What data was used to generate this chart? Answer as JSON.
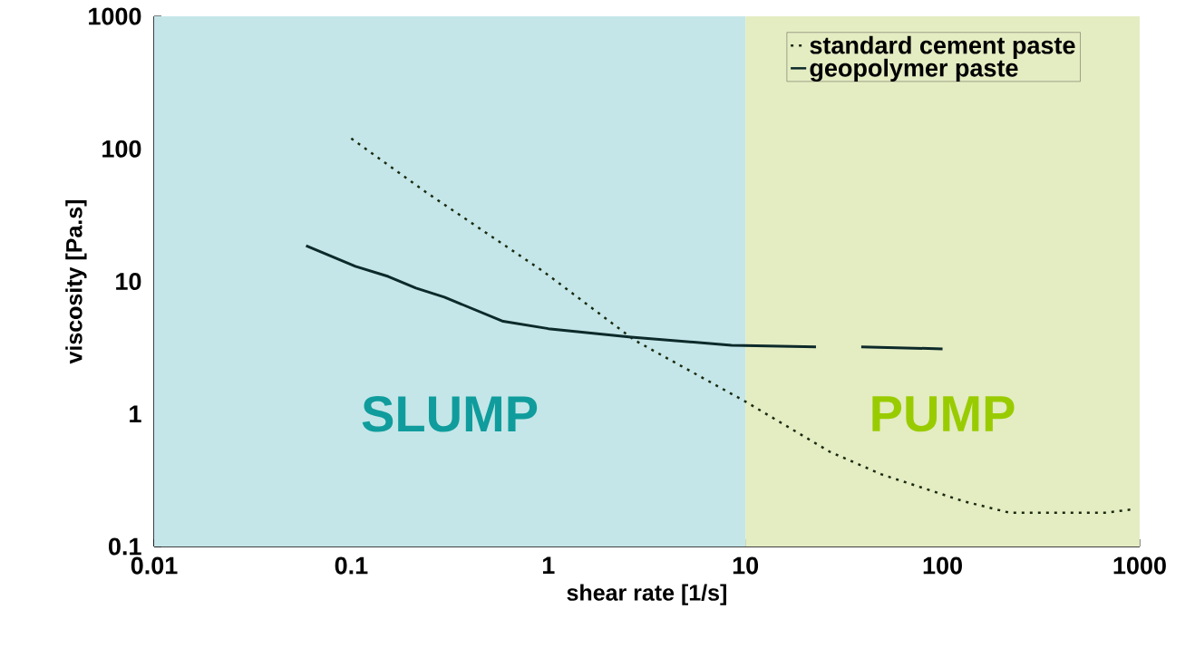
{
  "chart_data": {
    "type": "line",
    "xlabel": "shear rate [1/s]",
    "ylabel": "viscosity [Pa.s]",
    "log": "xy",
    "xlim": [
      0.01,
      1000
    ],
    "ylim": [
      0.1,
      1000
    ],
    "xticks": [
      0.01,
      0.1,
      1,
      10,
      100,
      1000
    ],
    "yticks": [
      0.1,
      1,
      10,
      100,
      1000
    ],
    "legend": "top right",
    "grid": false,
    "marker": "none",
    "series": [
      {
        "name": "standard cement paste",
        "color": "#1a2a10",
        "line_style": "dotted",
        "x": [
          0.1,
          0.24,
          0.95,
          2.74,
          10,
          26.7,
          49,
          127,
          218,
          385,
          676,
          900
        ],
        "values": [
          120,
          47,
          11.8,
          3.6,
          1.24,
          0.52,
          0.35,
          0.22,
          0.18,
          0.18,
          0.18,
          0.19
        ]
      },
      {
        "name": "geopolymer paste",
        "color": "#0d2a2a",
        "line_style": "solid",
        "x": [
          0.059,
          0.105,
          0.154,
          0.213,
          0.297,
          0.59,
          1.0,
          2.63,
          8.5,
          22.8,
          30,
          38.7,
          100
        ],
        "values": [
          18.6,
          13,
          10.9,
          8.9,
          7.6,
          5.0,
          4.4,
          3.8,
          3.3,
          3.2,
          null,
          3.2,
          3.1
        ]
      }
    ],
    "bands": [
      {
        "axis": "x",
        "from": 0.01,
        "to": 10,
        "label": "SLUMP",
        "color": "#c4e6e8"
      },
      {
        "axis": "x",
        "from": 10,
        "to": 1000,
        "label": "PUMP",
        "color": "#e4ecc2"
      }
    ]
  }
}
